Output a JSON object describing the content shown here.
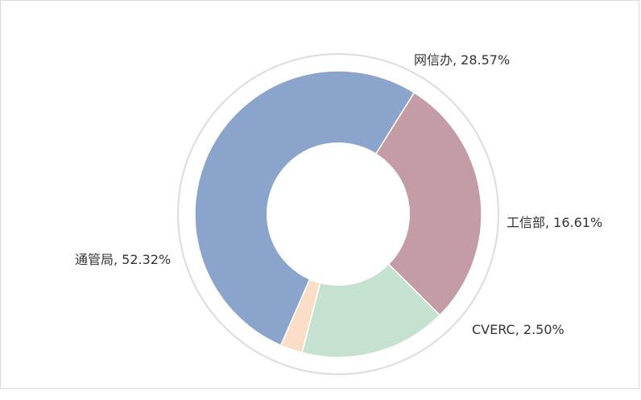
{
  "chart_data": {
    "type": "pie",
    "donut": true,
    "slices": [
      {
        "label": "网信办",
        "value": 28.57,
        "display": "网信办, 28.57%",
        "color": "#c49ca5"
      },
      {
        "label": "工信部",
        "value": 16.61,
        "display": "工信部, 16.61%",
        "color": "#c5e2d1"
      },
      {
        "label": "CVERC",
        "value": 2.5,
        "display": "CVERC, 2.50%",
        "color": "#fbdec7"
      },
      {
        "label": "通管局",
        "value": 52.32,
        "display": "通管局, 52.32%",
        "color": "#8aa4cc"
      }
    ],
    "legend": "none",
    "title": ""
  }
}
